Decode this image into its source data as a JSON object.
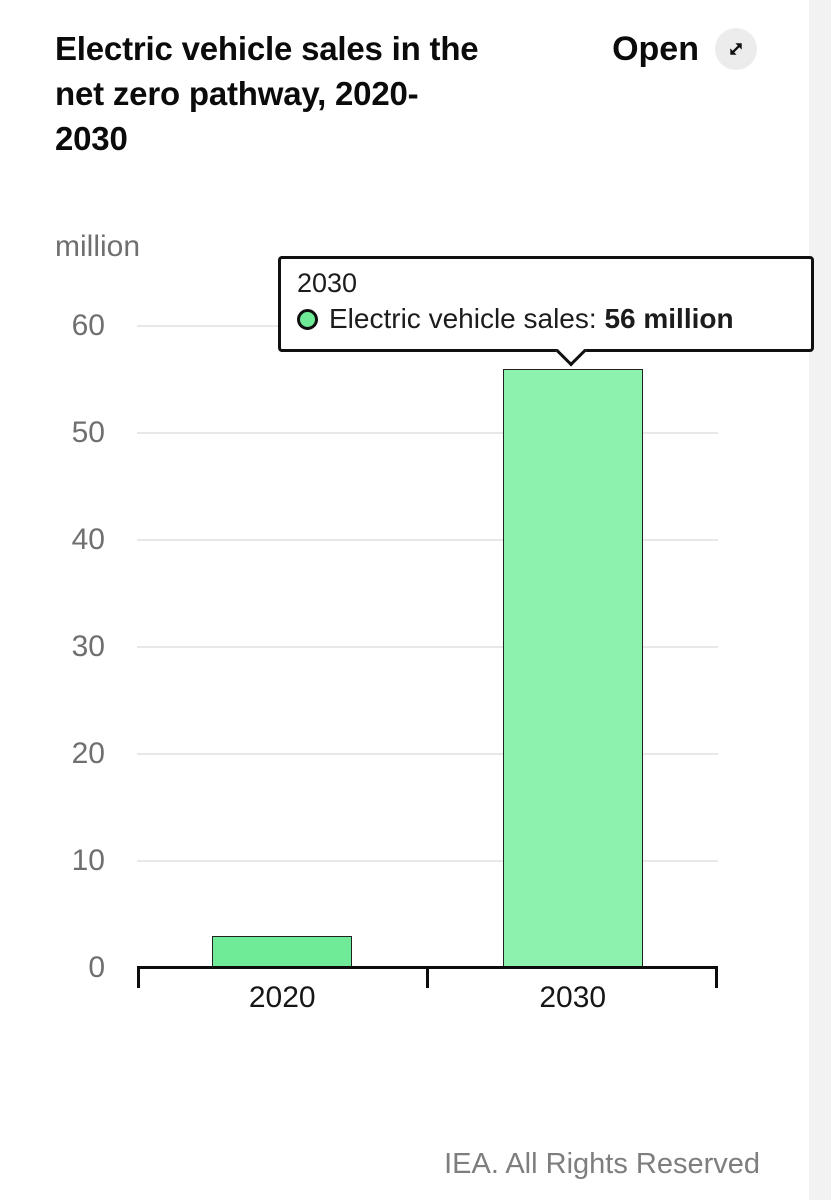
{
  "header": {
    "title_lines": [
      "Electric vehicle sales in the",
      "net zero pathway, 2020-",
      "2030"
    ],
    "open_label": "Open"
  },
  "chart_data": {
    "type": "bar",
    "title": "Electric vehicle sales in the net zero pathway, 2020-2030",
    "unit_label": "million",
    "categories": [
      "2020",
      "2030"
    ],
    "series": [
      {
        "name": "Electric vehicle sales",
        "values": [
          3,
          56
        ]
      }
    ],
    "ylim": [
      0,
      60
    ],
    "yticks": [
      0,
      10,
      20,
      30,
      40,
      50,
      60
    ],
    "grid": true,
    "legend_position": "none",
    "hovered_category": "2030",
    "colors": {
      "bar": "#6feb98",
      "bar_hovered": "#8df2ae",
      "bar_border": "#222222",
      "gridline": "#e8e8e8",
      "axis": "#0c0c0c"
    }
  },
  "tooltip": {
    "category": "2030",
    "series_label": "Electric vehicle sales: ",
    "value_bold": "56 million",
    "marker_color": "#6feb98"
  },
  "footer": {
    "credit": "IEA. All Rights Reserved"
  }
}
